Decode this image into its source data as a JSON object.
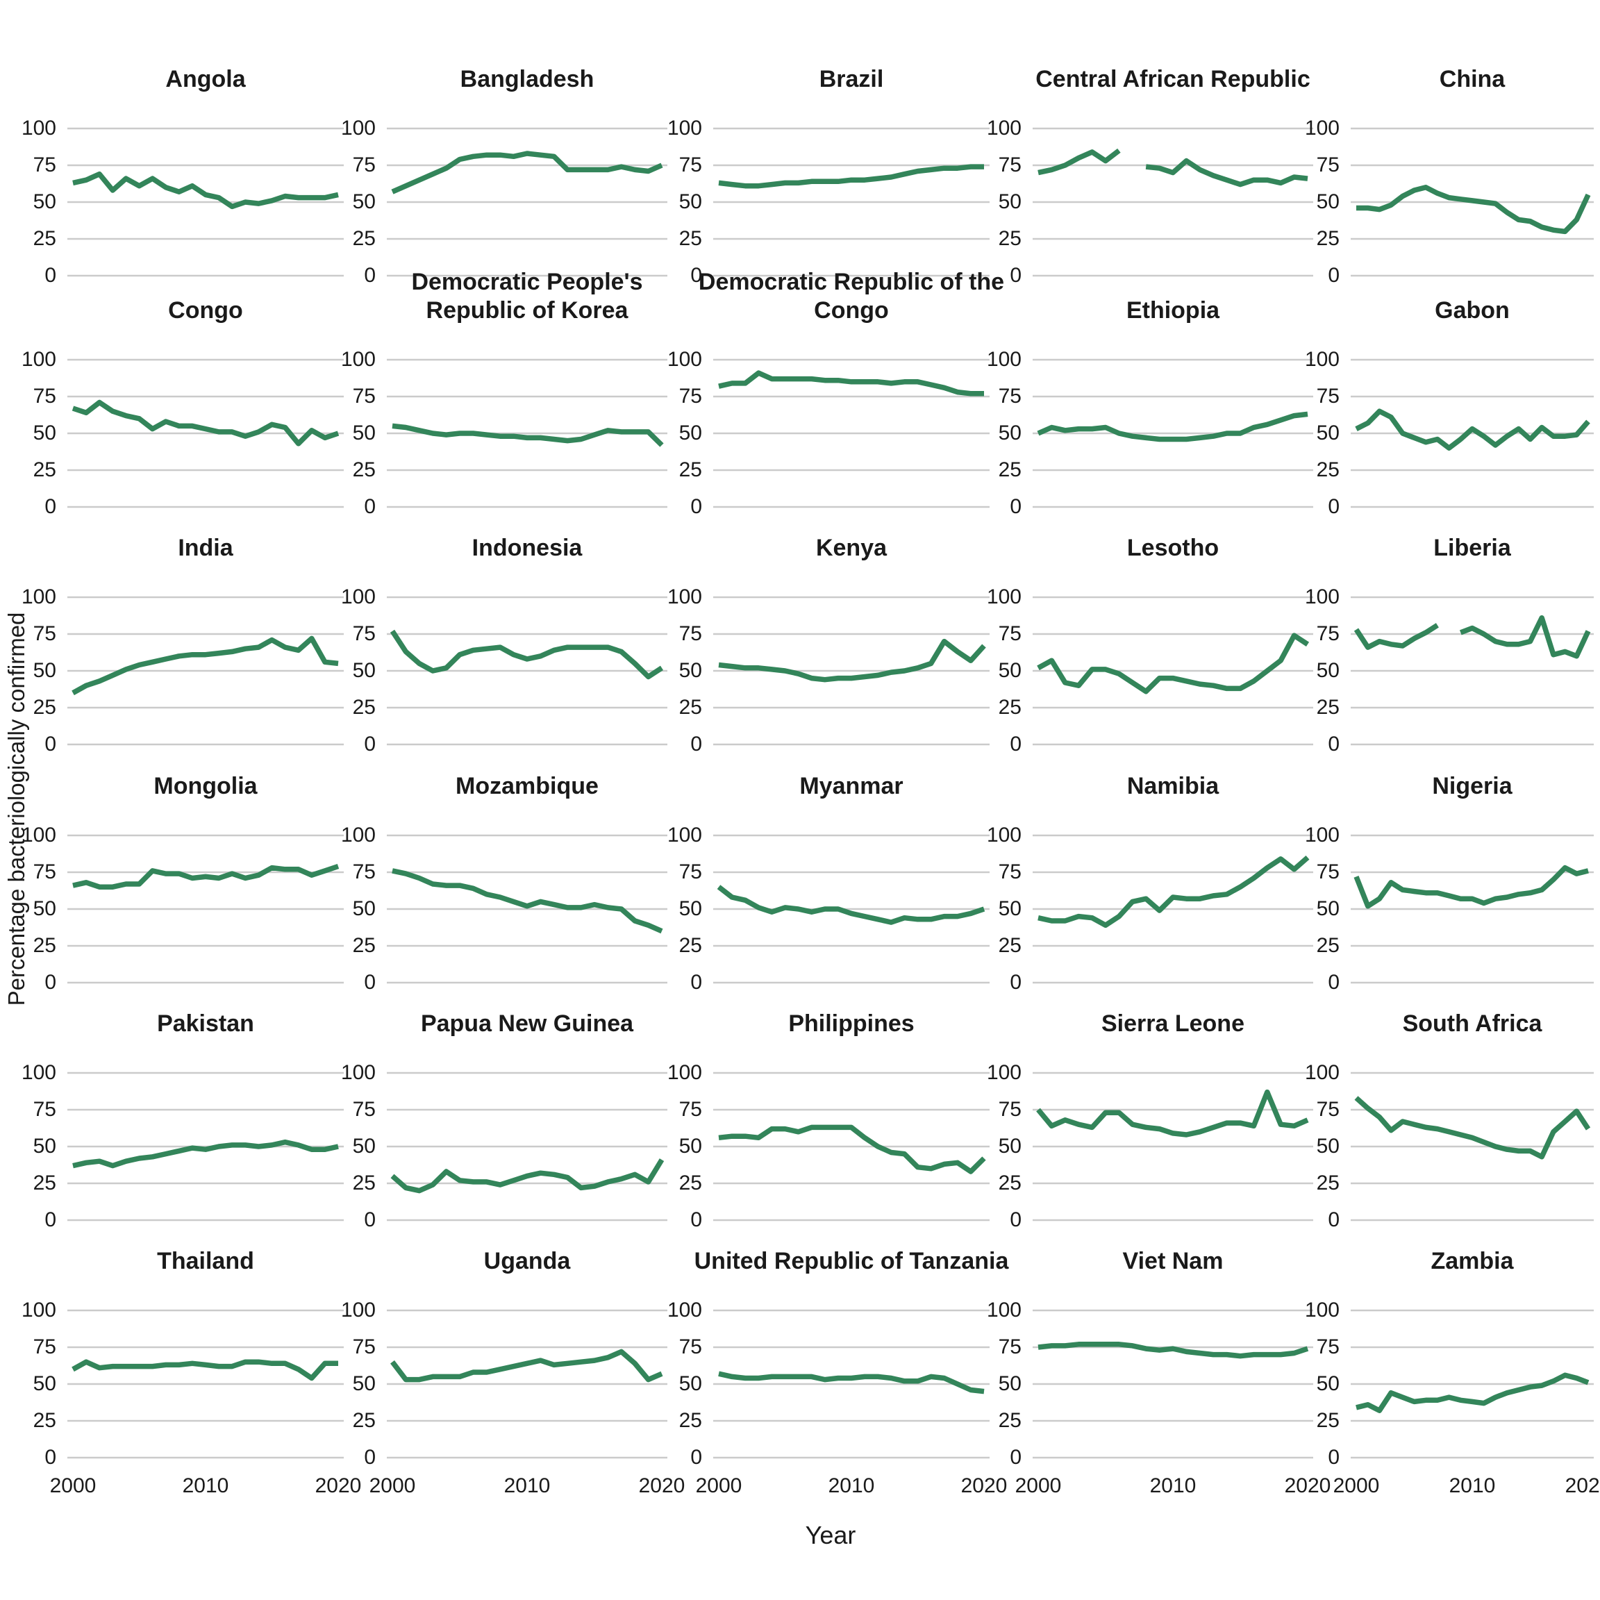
{
  "figure": {
    "y_axis_title": "Percentage bacteriologically confirmed",
    "x_axis_title": "Year",
    "line_color": "#33855A",
    "grid_color": "#cbcbcb",
    "text_color": "#1a1a1a",
    "background": "#ffffff"
  },
  "chart_data": {
    "type": "line",
    "title": "",
    "xlabel": "Year",
    "ylabel": "Percentage bacteriologically confirmed",
    "x": [
      2000,
      2001,
      2002,
      2003,
      2004,
      2005,
      2006,
      2007,
      2008,
      2009,
      2010,
      2011,
      2012,
      2013,
      2014,
      2015,
      2016,
      2017,
      2018,
      2019,
      2020
    ],
    "xticks": [
      2000,
      2010,
      2020
    ],
    "yticks": [
      0,
      25,
      50,
      75,
      100
    ],
    "ylim": [
      0,
      100
    ],
    "grid": "horizontal-only",
    "legend": "none",
    "facet_layout": {
      "rows": 6,
      "cols": 5
    },
    "series": [
      {
        "name": "Angola",
        "values": [
          63,
          65,
          69,
          58,
          66,
          61,
          66,
          60,
          57,
          61,
          55,
          53,
          47,
          50,
          49,
          51,
          54,
          53,
          53,
          53,
          55
        ]
      },
      {
        "name": "Bangladesh",
        "values": [
          57,
          61,
          65,
          69,
          73,
          79,
          81,
          82,
          82,
          81,
          83,
          82,
          81,
          72,
          72,
          72,
          72,
          74,
          72,
          71,
          75
        ]
      },
      {
        "name": "Brazil",
        "values": [
          63,
          62,
          61,
          61,
          62,
          63,
          63,
          64,
          64,
          64,
          65,
          65,
          66,
          67,
          69,
          71,
          72,
          73,
          73,
          74,
          74
        ]
      },
      {
        "name": "Central African Republic",
        "values": [
          70,
          72,
          75,
          80,
          84,
          78,
          85,
          null,
          74,
          73,
          70,
          78,
          72,
          68,
          65,
          62,
          65,
          65,
          63,
          67,
          66
        ]
      },
      {
        "name": "China",
        "values": [
          46,
          46,
          45,
          48,
          54,
          58,
          60,
          56,
          53,
          52,
          51,
          50,
          49,
          43,
          38,
          37,
          33,
          31,
          30,
          38,
          55
        ]
      },
      {
        "name": "Congo",
        "values": [
          67,
          64,
          71,
          65,
          62,
          60,
          53,
          58,
          55,
          55,
          53,
          51,
          51,
          48,
          51,
          56,
          54,
          43,
          52,
          47,
          50
        ]
      },
      {
        "name": "Democratic People's Republic of Korea",
        "values": [
          55,
          54,
          52,
          50,
          49,
          50,
          50,
          49,
          48,
          48,
          47,
          47,
          46,
          45,
          46,
          49,
          52,
          51,
          51,
          51,
          42
        ]
      },
      {
        "name": "Democratic Republic of the Congo",
        "values": [
          82,
          84,
          84,
          91,
          87,
          87,
          87,
          87,
          86,
          86,
          85,
          85,
          85,
          84,
          85,
          85,
          83,
          81,
          78,
          77,
          77
        ]
      },
      {
        "name": "Ethiopia",
        "values": [
          50,
          54,
          52,
          53,
          53,
          54,
          50,
          48,
          47,
          46,
          46,
          46,
          47,
          48,
          50,
          50,
          54,
          56,
          59,
          62,
          63
        ]
      },
      {
        "name": "Gabon",
        "values": [
          53,
          57,
          65,
          61,
          50,
          47,
          44,
          46,
          40,
          46,
          53,
          48,
          42,
          48,
          53,
          46,
          54,
          48,
          48,
          49,
          58
        ]
      },
      {
        "name": "India",
        "values": [
          35,
          40,
          43,
          47,
          51,
          54,
          56,
          58,
          60,
          61,
          61,
          62,
          63,
          65,
          66,
          71,
          66,
          64,
          72,
          56,
          55
        ]
      },
      {
        "name": "Indonesia",
        "values": [
          77,
          63,
          55,
          50,
          52,
          61,
          64,
          65,
          66,
          61,
          58,
          60,
          64,
          66,
          66,
          66,
          66,
          63,
          55,
          46,
          52
        ]
      },
      {
        "name": "Kenya",
        "values": [
          54,
          53,
          52,
          52,
          51,
          50,
          48,
          45,
          44,
          45,
          45,
          46,
          47,
          49,
          50,
          52,
          55,
          70,
          63,
          57,
          67
        ]
      },
      {
        "name": "Lesotho",
        "values": [
          52,
          57,
          42,
          40,
          51,
          51,
          48,
          42,
          36,
          45,
          45,
          43,
          41,
          40,
          38,
          38,
          43,
          50,
          57,
          74,
          68
        ]
      },
      {
        "name": "Liberia",
        "values": [
          78,
          66,
          70,
          68,
          67,
          72,
          76,
          81,
          null,
          76,
          79,
          75,
          70,
          68,
          68,
          70,
          86,
          61,
          63,
          60,
          77
        ]
      },
      {
        "name": "Mongolia",
        "values": [
          66,
          68,
          65,
          65,
          67,
          67,
          76,
          74,
          74,
          71,
          72,
          71,
          74,
          71,
          73,
          78,
          77,
          77,
          73,
          76,
          79
        ]
      },
      {
        "name": "Mozambique",
        "values": [
          76,
          74,
          71,
          67,
          66,
          66,
          64,
          60,
          58,
          55,
          52,
          55,
          53,
          51,
          51,
          53,
          51,
          50,
          42,
          39,
          35
        ]
      },
      {
        "name": "Myanmar",
        "values": [
          65,
          58,
          56,
          51,
          48,
          51,
          50,
          48,
          50,
          50,
          47,
          45,
          43,
          41,
          44,
          43,
          43,
          45,
          45,
          47,
          50
        ]
      },
      {
        "name": "Namibia",
        "values": [
          44,
          42,
          42,
          45,
          44,
          39,
          45,
          55,
          57,
          49,
          58,
          57,
          57,
          59,
          60,
          65,
          71,
          78,
          84,
          77,
          85
        ]
      },
      {
        "name": "Nigeria",
        "values": [
          72,
          52,
          57,
          68,
          63,
          62,
          61,
          61,
          59,
          57,
          57,
          54,
          57,
          58,
          60,
          61,
          63,
          70,
          78,
          74,
          76
        ]
      },
      {
        "name": "Pakistan",
        "values": [
          37,
          39,
          40,
          37,
          40,
          42,
          43,
          45,
          47,
          49,
          48,
          50,
          51,
          51,
          50,
          51,
          53,
          51,
          48,
          48,
          50
        ]
      },
      {
        "name": "Papua New Guinea",
        "values": [
          30,
          22,
          20,
          24,
          33,
          27,
          26,
          26,
          24,
          27,
          30,
          32,
          31,
          29,
          22,
          23,
          26,
          28,
          31,
          26,
          41
        ]
      },
      {
        "name": "Philippines",
        "values": [
          56,
          57,
          57,
          56,
          62,
          62,
          60,
          63,
          63,
          63,
          63,
          56,
          50,
          46,
          45,
          36,
          35,
          38,
          39,
          33,
          42
        ]
      },
      {
        "name": "Sierra Leone",
        "values": [
          75,
          64,
          68,
          65,
          63,
          73,
          73,
          65,
          63,
          62,
          59,
          58,
          60,
          63,
          66,
          66,
          64,
          87,
          65,
          64,
          68
        ]
      },
      {
        "name": "South Africa",
        "values": [
          83,
          76,
          70,
          61,
          67,
          65,
          63,
          62,
          60,
          58,
          56,
          53,
          50,
          48,
          47,
          47,
          43,
          60,
          67,
          74,
          62
        ]
      },
      {
        "name": "Thailand",
        "values": [
          60,
          65,
          61,
          62,
          62,
          62,
          62,
          63,
          63,
          64,
          63,
          62,
          62,
          65,
          65,
          64,
          64,
          60,
          54,
          64,
          64
        ]
      },
      {
        "name": "Uganda",
        "values": [
          65,
          53,
          53,
          55,
          55,
          55,
          58,
          58,
          60,
          62,
          64,
          66,
          63,
          64,
          65,
          66,
          68,
          72,
          64,
          53,
          57
        ]
      },
      {
        "name": "United Republic of Tanzania",
        "values": [
          57,
          55,
          54,
          54,
          55,
          55,
          55,
          55,
          53,
          54,
          54,
          55,
          55,
          54,
          52,
          52,
          55,
          54,
          50,
          46,
          45
        ]
      },
      {
        "name": "Viet Nam",
        "values": [
          75,
          76,
          76,
          77,
          77,
          77,
          77,
          76,
          74,
          73,
          74,
          72,
          71,
          70,
          70,
          69,
          70,
          70,
          70,
          71,
          74
        ]
      },
      {
        "name": "Zambia",
        "values": [
          34,
          36,
          32,
          44,
          41,
          38,
          39,
          39,
          41,
          39,
          38,
          37,
          41,
          44,
          46,
          48,
          49,
          52,
          56,
          54,
          51
        ]
      }
    ]
  }
}
